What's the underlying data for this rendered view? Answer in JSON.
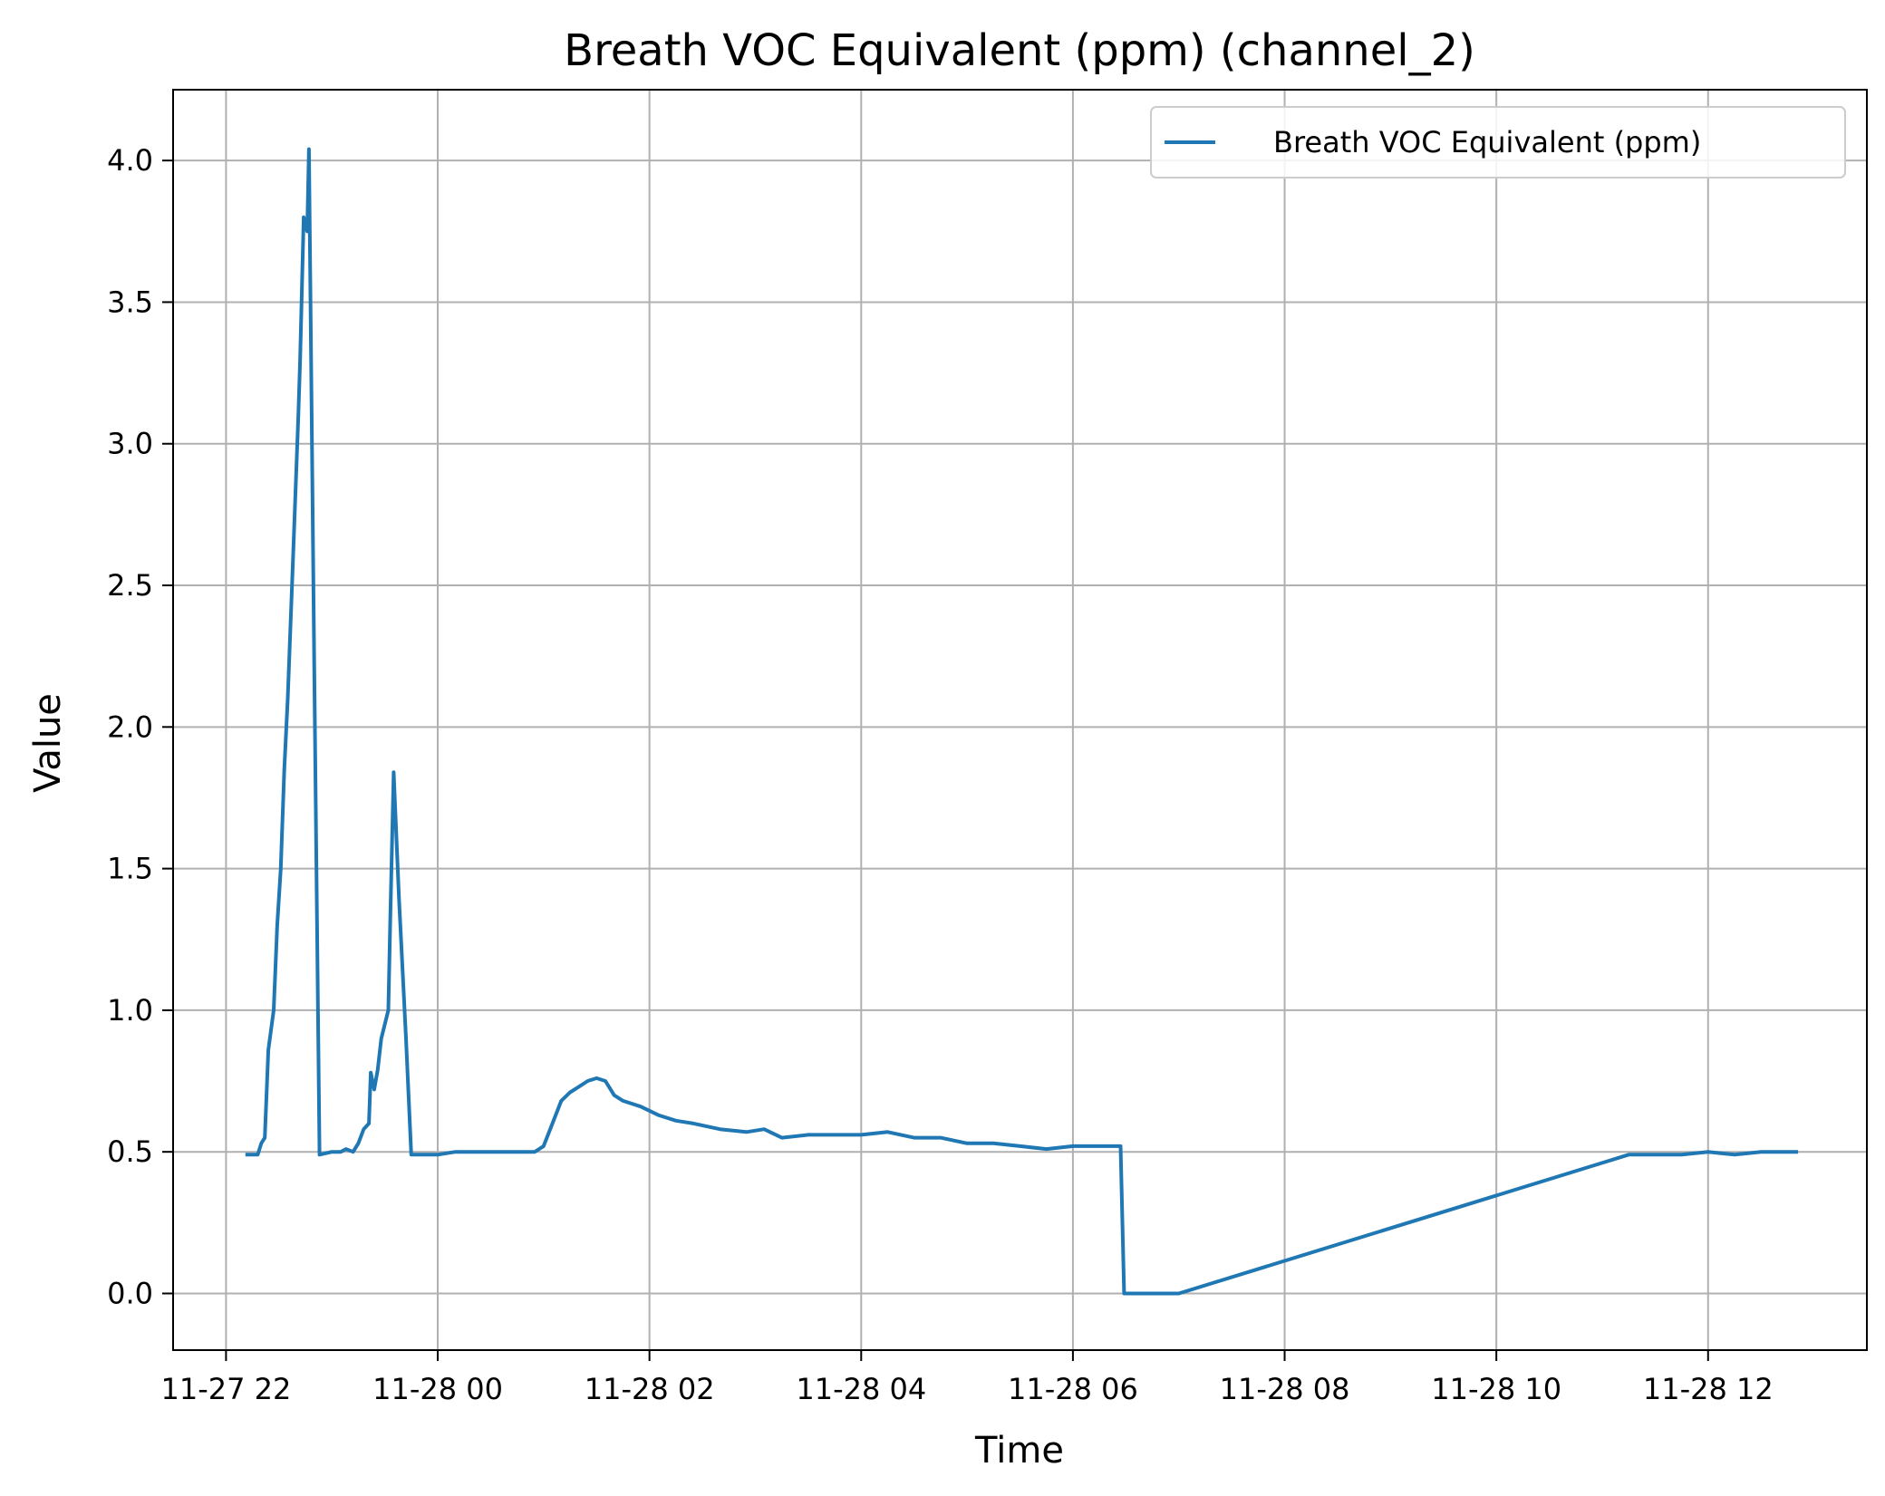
{
  "chart_data": {
    "type": "line",
    "title": "Breath VOC Equivalent (ppm) (channel_2)",
    "xlabel": "Time",
    "ylabel": "Value",
    "xlim": [
      "2025-11-27T21:30",
      "2025-11-28T13:30"
    ],
    "ylim": [
      -0.2,
      4.25
    ],
    "xticks": [
      {
        "x": "2025-11-27T22:00",
        "label": "11-27 22"
      },
      {
        "x": "2025-11-28T00:00",
        "label": "11-28 00"
      },
      {
        "x": "2025-11-28T02:00",
        "label": "11-28 02"
      },
      {
        "x": "2025-11-28T04:00",
        "label": "11-28 04"
      },
      {
        "x": "2025-11-28T06:00",
        "label": "11-28 06"
      },
      {
        "x": "2025-11-28T08:00",
        "label": "11-28 08"
      },
      {
        "x": "2025-11-28T10:00",
        "label": "11-28 10"
      },
      {
        "x": "2025-11-28T12:00",
        "label": "11-28 12"
      }
    ],
    "yticks": [
      {
        "y": 0.0,
        "label": "0.0"
      },
      {
        "y": 0.5,
        "label": "0.5"
      },
      {
        "y": 1.0,
        "label": "1.0"
      },
      {
        "y": 1.5,
        "label": "1.5"
      },
      {
        "y": 2.0,
        "label": "2.0"
      },
      {
        "y": 2.5,
        "label": "2.5"
      },
      {
        "y": 3.0,
        "label": "3.0"
      },
      {
        "y": 3.5,
        "label": "3.5"
      },
      {
        "y": 4.0,
        "label": "4.0"
      }
    ],
    "grid": true,
    "legend_position": "top-right",
    "colors": {
      "series": "#1f77b4",
      "grid": "#b0b0b0",
      "axes": "#000000"
    },
    "series": [
      {
        "name": "Breath VOC Equivalent (ppm)",
        "points": [
          [
            "2025-11-27T22:12",
            0.49
          ],
          [
            "2025-11-27T22:18",
            0.49
          ],
          [
            "2025-11-27T22:20",
            0.53
          ],
          [
            "2025-11-27T22:22",
            0.55
          ],
          [
            "2025-11-27T22:24",
            0.86
          ],
          [
            "2025-11-27T22:27",
            1.0
          ],
          [
            "2025-11-27T22:29",
            1.3
          ],
          [
            "2025-11-27T22:31",
            1.5
          ],
          [
            "2025-11-27T22:33",
            1.85
          ],
          [
            "2025-11-27T22:35",
            2.1
          ],
          [
            "2025-11-27T22:38",
            2.6
          ],
          [
            "2025-11-27T22:41",
            3.1
          ],
          [
            "2025-11-27T22:42",
            3.3
          ],
          [
            "2025-11-27T22:44",
            3.8
          ],
          [
            "2025-11-27T22:46",
            3.75
          ],
          [
            "2025-11-27T22:47",
            4.04
          ],
          [
            "2025-11-27T22:50",
            2.2
          ],
          [
            "2025-11-27T22:53",
            0.49
          ],
          [
            "2025-11-27T23:00",
            0.5
          ],
          [
            "2025-11-27T23:05",
            0.5
          ],
          [
            "2025-11-27T23:08",
            0.51
          ],
          [
            "2025-11-27T23:12",
            0.5
          ],
          [
            "2025-11-27T23:15",
            0.53
          ],
          [
            "2025-11-27T23:18",
            0.58
          ],
          [
            "2025-11-27T23:21",
            0.6
          ],
          [
            "2025-11-27T23:22",
            0.78
          ],
          [
            "2025-11-27T23:24",
            0.72
          ],
          [
            "2025-11-27T23:26",
            0.79
          ],
          [
            "2025-11-27T23:28",
            0.9
          ],
          [
            "2025-11-27T23:30",
            0.95
          ],
          [
            "2025-11-27T23:32",
            1.0
          ],
          [
            "2025-11-27T23:33",
            1.3
          ],
          [
            "2025-11-27T23:35",
            1.84
          ],
          [
            "2025-11-27T23:38",
            1.4
          ],
          [
            "2025-11-27T23:42",
            0.9
          ],
          [
            "2025-11-27T23:45",
            0.49
          ],
          [
            "2025-11-28T00:00",
            0.49
          ],
          [
            "2025-11-28T00:10",
            0.5
          ],
          [
            "2025-11-28T00:20",
            0.5
          ],
          [
            "2025-11-28T00:30",
            0.5
          ],
          [
            "2025-11-28T00:40",
            0.5
          ],
          [
            "2025-11-28T00:55",
            0.5
          ],
          [
            "2025-11-28T01:00",
            0.52
          ],
          [
            "2025-11-28T01:05",
            0.6
          ],
          [
            "2025-11-28T01:10",
            0.68
          ],
          [
            "2025-11-28T01:15",
            0.71
          ],
          [
            "2025-11-28T01:20",
            0.73
          ],
          [
            "2025-11-28T01:25",
            0.75
          ],
          [
            "2025-11-28T01:30",
            0.76
          ],
          [
            "2025-11-28T01:35",
            0.75
          ],
          [
            "2025-11-28T01:40",
            0.7
          ],
          [
            "2025-11-28T01:45",
            0.68
          ],
          [
            "2025-11-28T01:55",
            0.66
          ],
          [
            "2025-11-28T02:05",
            0.63
          ],
          [
            "2025-11-28T02:15",
            0.61
          ],
          [
            "2025-11-28T02:25",
            0.6
          ],
          [
            "2025-11-28T02:40",
            0.58
          ],
          [
            "2025-11-28T02:55",
            0.57
          ],
          [
            "2025-11-28T03:05",
            0.58
          ],
          [
            "2025-11-28T03:15",
            0.55
          ],
          [
            "2025-11-28T03:30",
            0.56
          ],
          [
            "2025-11-28T03:45",
            0.56
          ],
          [
            "2025-11-28T04:00",
            0.56
          ],
          [
            "2025-11-28T04:15",
            0.57
          ],
          [
            "2025-11-28T04:30",
            0.55
          ],
          [
            "2025-11-28T04:45",
            0.55
          ],
          [
            "2025-11-28T05:00",
            0.53
          ],
          [
            "2025-11-28T05:15",
            0.53
          ],
          [
            "2025-11-28T05:30",
            0.52
          ],
          [
            "2025-11-28T05:45",
            0.51
          ],
          [
            "2025-11-28T06:00",
            0.52
          ],
          [
            "2025-11-28T06:15",
            0.52
          ],
          [
            "2025-11-28T06:27",
            0.52
          ],
          [
            "2025-11-28T06:29",
            0.0
          ],
          [
            "2025-11-28T07:00",
            0.0
          ],
          [
            "2025-11-28T11:15",
            0.49
          ],
          [
            "2025-11-28T11:45",
            0.49
          ],
          [
            "2025-11-28T12:00",
            0.5
          ],
          [
            "2025-11-28T12:15",
            0.49
          ],
          [
            "2025-11-28T12:30",
            0.5
          ],
          [
            "2025-11-28T12:50",
            0.5
          ]
        ]
      }
    ]
  }
}
